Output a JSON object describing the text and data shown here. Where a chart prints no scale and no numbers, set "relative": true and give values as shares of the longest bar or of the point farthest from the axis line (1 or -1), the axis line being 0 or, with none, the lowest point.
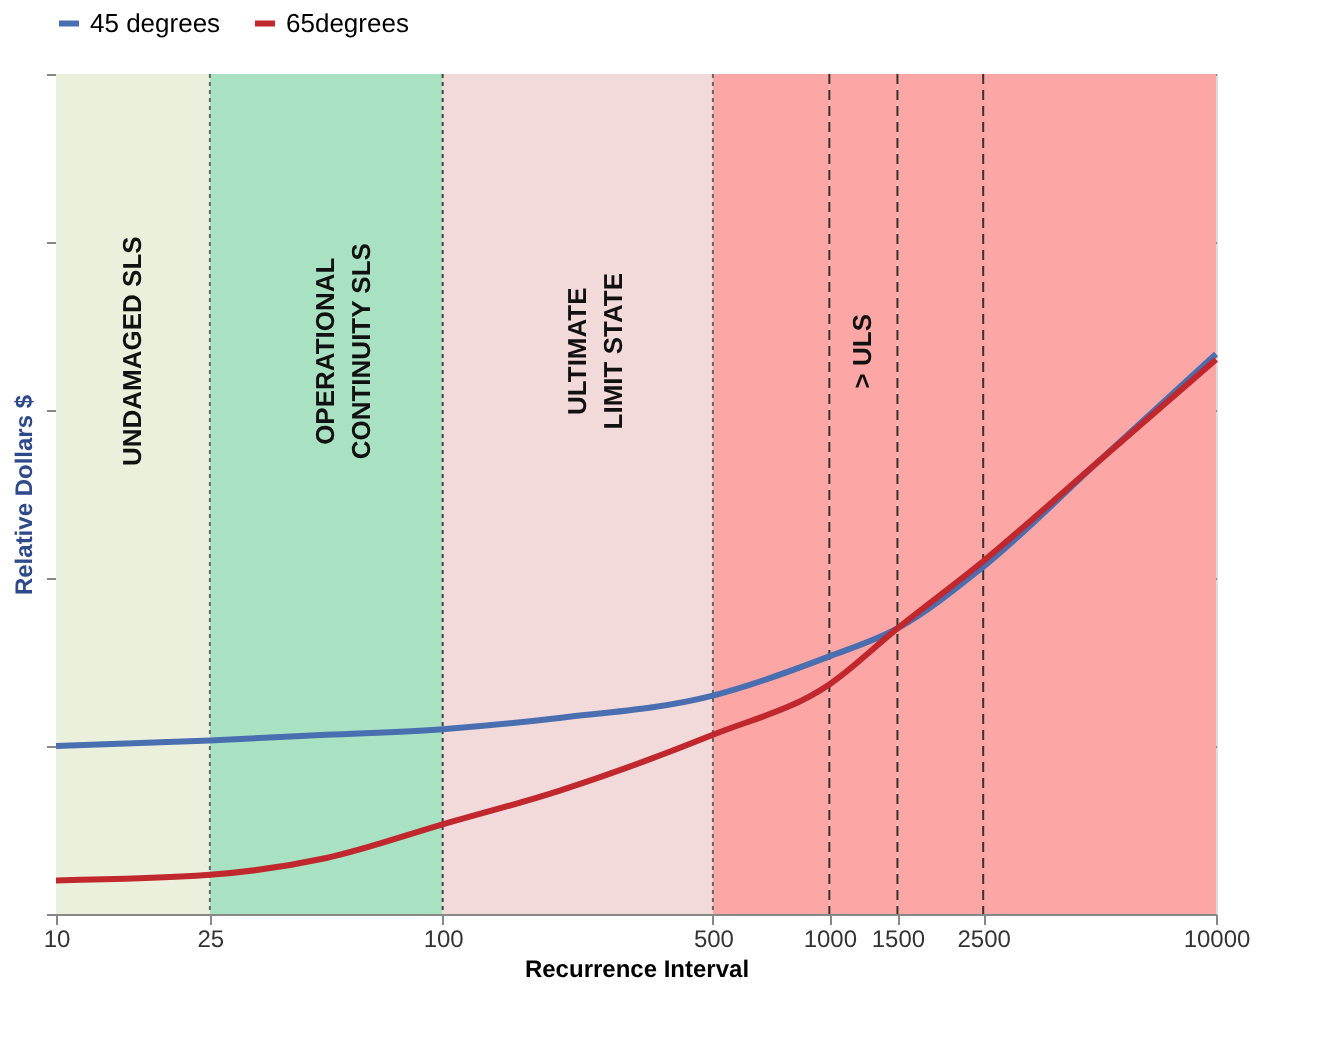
{
  "chart_data": {
    "type": "line",
    "xlabel": "Recurrence Interval",
    "ylabel": "Relative Dollars $",
    "relative": true,
    "log": "x",
    "x": [
      10,
      25,
      50,
      100,
      200,
      500,
      1000,
      1500,
      2500,
      5000,
      10000
    ],
    "xlim": [
      10,
      10000
    ],
    "xticks": [
      10,
      25,
      100,
      500,
      1000,
      1500,
      2500,
      10000
    ],
    "series": [
      {
        "name": "45 degrees",
        "color": "#4a6fb0",
        "values": [
          0.3,
          0.31,
          0.32,
          0.33,
          0.35,
          0.39,
          0.46,
          0.51,
          0.62,
          0.81,
          1.0
        ]
      },
      {
        "name": "65degrees",
        "color": "#c0282d",
        "values": [
          0.06,
          0.07,
          0.1,
          0.16,
          0.22,
          0.32,
          0.41,
          0.51,
          0.63,
          0.81,
          0.99
        ]
      }
    ],
    "bands": [
      {
        "axis": "x",
        "from": 10,
        "to": 25,
        "label": "UNDAMAGED SLS",
        "color": "#ebf0dc"
      },
      {
        "axis": "x",
        "from": 25,
        "to": 100,
        "label": "OPERATIONAL\nCONTINUITY SLS",
        "color": "#a8e2c2"
      },
      {
        "axis": "x",
        "from": 100,
        "to": 500,
        "label": "ULTIMATE\nLIMIT STATE",
        "color": "#f2d9da"
      },
      {
        "axis": "x",
        "from": 500,
        "to": 1000,
        "color": "#fda6a6"
      },
      {
        "axis": "x",
        "from": 1000,
        "to": 1500,
        "label": "> ULS",
        "color": "#fda6a6"
      },
      {
        "axis": "x",
        "from": 1500,
        "to": 10000,
        "color": "#fda6a6"
      }
    ],
    "ref_lines": [
      {
        "axis": "x",
        "value": 25,
        "line_style": "dotted",
        "color": "#666666"
      },
      {
        "axis": "x",
        "value": 100,
        "line_style": "dotted",
        "color": "#444444"
      },
      {
        "axis": "x",
        "value": 500,
        "line_style": "dotted",
        "color": "#666666"
      },
      {
        "axis": "x",
        "value": 1000,
        "line_style": "dashed",
        "color": "#333333"
      },
      {
        "axis": "x",
        "value": 1500,
        "line_style": "dashed",
        "color": "#333333"
      },
      {
        "axis": "x",
        "value": 2500,
        "line_style": "dashed",
        "color": "#333333"
      }
    ],
    "grid": "y",
    "legend": "top",
    "line_style": "solid",
    "marker": "none"
  }
}
